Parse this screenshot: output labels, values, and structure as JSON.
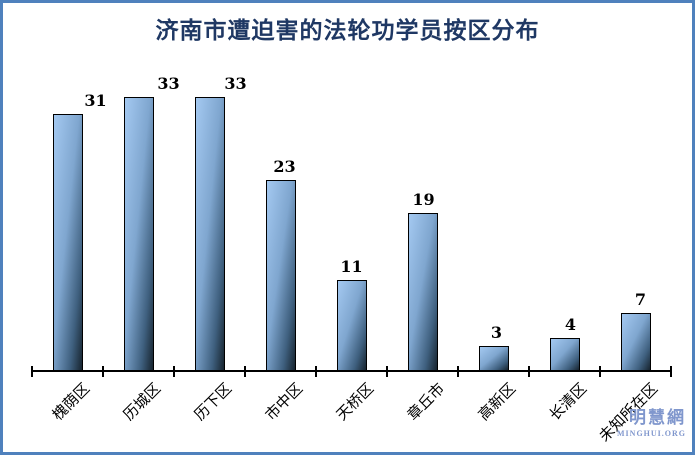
{
  "chart_data": {
    "type": "bar",
    "title": "济南市遭迫害的法轮功学员按区分布",
    "categories": [
      "槐荫区",
      "历城区",
      "历下区",
      "市中区",
      "天桥区",
      "章丘市",
      "高新区",
      "长清区",
      "未知所在区"
    ],
    "values": [
      31,
      33,
      33,
      23,
      11,
      19,
      3,
      4,
      7
    ],
    "xlabel": "",
    "ylabel": "",
    "ylim": [
      0,
      36
    ],
    "grid": false,
    "legend": false,
    "data_labels": true
  },
  "watermark": {
    "site_name": "明慧網",
    "site_org": "MINGHUI.ORG"
  },
  "colors": {
    "frame_border": "#4f81bd",
    "title_text": "#1f3864",
    "bar_light": "#a4c9f1",
    "bar_dark": "#17242f",
    "bar_outline": "#000000",
    "axis": "#000000",
    "value_label": "#000000",
    "category_label": "#000000",
    "watermark": "#8097cd"
  }
}
